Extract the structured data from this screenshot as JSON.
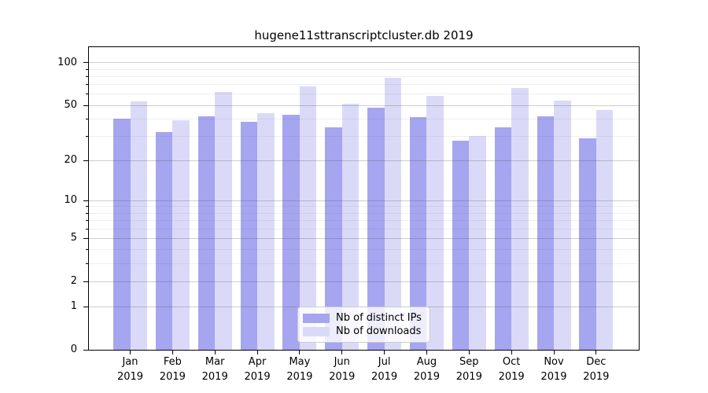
{
  "chart_data": {
    "type": "bar",
    "title": "hugene11sttranscriptcluster.db 2019",
    "year_label": "2019",
    "categories": [
      "Jan",
      "Feb",
      "Mar",
      "Apr",
      "May",
      "Jun",
      "Jul",
      "Aug",
      "Sep",
      "Oct",
      "Nov",
      "Dec"
    ],
    "series": [
      {
        "name": "Nb of distinct IPs",
        "color": "#a5a5f0",
        "values": [
          40,
          32,
          42,
          38,
          43,
          35,
          48,
          41,
          28,
          35,
          42,
          29
        ]
      },
      {
        "name": "Nb of downloads",
        "color": "#dadaf8",
        "values": [
          53,
          39,
          62,
          44,
          68,
          51,
          78,
          58,
          30,
          66,
          54,
          46
        ]
      }
    ],
    "yscale": "log(value+1)",
    "ylim": [
      0,
      129
    ],
    "yticks": [
      0,
      1,
      2,
      5,
      10,
      20,
      50,
      100
    ],
    "minor_gridlines": [
      3,
      4,
      6,
      7,
      8,
      9,
      30,
      40,
      60,
      70,
      80,
      90
    ],
    "grid": "horizontal only",
    "legend_position": "lower center",
    "xlabel": "",
    "ylabel": ""
  },
  "colors": {
    "background": "#ffffff",
    "axis": "#000000",
    "text": "#000000",
    "grid_major": "rgba(80,80,80,0.28)",
    "grid_minor": "rgba(80,80,80,0.09)",
    "legend_border": "#cccccc",
    "legend_background": "rgba(255,255,255,0.8)"
  }
}
